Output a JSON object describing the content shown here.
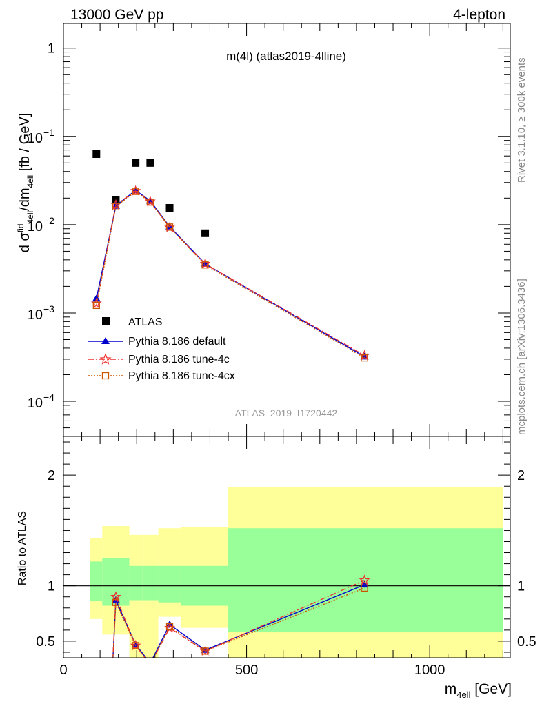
{
  "header": {
    "left_label": "13000 GeV pp",
    "right_label": "4-lepton"
  },
  "side_labels": {
    "rivet": "Rivet 3.1.10, ≥ 300k events",
    "mcplots": "mcplots.cern.ch [arXiv:1306.3436]"
  },
  "chart_data": [
    {
      "type": "scatter",
      "title": "m(4l) (atlas2019-4lline)",
      "analysis_id": "ATLAS_2019_I1720442",
      "ylabel_parts": {
        "a": "d σ",
        "b": "fid",
        "c": "4ell",
        "d": "/dm",
        "e": "4ell",
        "f": " [fb / GeV]"
      },
      "xlim": [
        0,
        1220
      ],
      "ylog": true,
      "ylim": [
        4e-05,
        1.9
      ],
      "yticks": [
        {
          "v": 1,
          "label": "1"
        },
        {
          "v": 0.1,
          "base": "10",
          "exp": "−1"
        },
        {
          "v": 0.01,
          "base": "10",
          "exp": "−2"
        },
        {
          "v": 0.001,
          "base": "10",
          "exp": "−3"
        },
        {
          "v": 0.0001,
          "base": "10",
          "exp": "−4"
        }
      ],
      "legend_position": "bottom-left",
      "series": [
        {
          "name": "ATLAS",
          "color": "#000000",
          "marker": "square",
          "points": [
            [
              90,
              0.063
            ],
            [
              143,
              0.019
            ],
            [
              197,
              0.05
            ],
            [
              237,
              0.05
            ],
            [
              290,
              0.0155
            ],
            [
              387,
              0.008
            ]
          ]
        },
        {
          "name": "Pythia 8.186 default",
          "color": "#0000cc",
          "marker": "triangle",
          "line": "solid",
          "points": [
            [
              90,
              0.00145
            ],
            [
              143,
              0.0163
            ],
            [
              197,
              0.0245
            ],
            [
              237,
              0.0186
            ],
            [
              290,
              0.0095
            ],
            [
              387,
              0.0036
            ],
            [
              822,
              0.00032
            ]
          ]
        },
        {
          "name": "Pythia 8.186 tune-4c",
          "color": "#ee3333",
          "marker": "star",
          "line": "dashdot",
          "points": [
            [
              90,
              0.00128
            ],
            [
              143,
              0.0168
            ],
            [
              197,
              0.0241
            ],
            [
              237,
              0.0183
            ],
            [
              290,
              0.0093
            ],
            [
              387,
              0.0036
            ],
            [
              822,
              0.00033
            ]
          ]
        },
        {
          "name": "Pythia 8.186 tune-4cx",
          "color": "#cc5500",
          "marker": "open-square",
          "line": "dotted",
          "points": [
            [
              90,
              0.00122
            ],
            [
              143,
              0.016
            ],
            [
              197,
              0.0238
            ],
            [
              237,
              0.018
            ],
            [
              290,
              0.0094
            ],
            [
              387,
              0.0035
            ],
            [
              822,
              0.00031
            ]
          ]
        }
      ]
    },
    {
      "type": "line",
      "ylabel": "Ratio to ATLAS",
      "xlabel_parts": {
        "a": "m",
        "b": "4ell",
        "c": " [GeV]"
      },
      "xlim": [
        0,
        1220
      ],
      "ylim": [
        0.35,
        2.35
      ],
      "xticks": [
        0,
        500,
        1000
      ],
      "yticks": [
        0.5,
        1,
        2
      ],
      "reference_line": 1,
      "bands": [
        {
          "x0": 72,
          "x1": 106,
          "inner": [
            0.86,
            1.22
          ],
          "outer": [
            0.7,
            1.43
          ]
        },
        {
          "x0": 106,
          "x1": 180,
          "inner": [
            0.82,
            1.25
          ],
          "outer": [
            0.56,
            1.54
          ]
        },
        {
          "x0": 180,
          "x1": 215,
          "inner": [
            0.87,
            1.18
          ],
          "outer": [
            0.0,
            1.46
          ]
        },
        {
          "x0": 215,
          "x1": 259,
          "inner": [
            0.87,
            1.18
          ],
          "outer": [
            0.0,
            1.46
          ]
        },
        {
          "x0": 259,
          "x1": 320,
          "inner": [
            0.85,
            1.18
          ],
          "outer": [
            0.72,
            1.52
          ]
        },
        {
          "x0": 320,
          "x1": 450,
          "inner": [
            0.82,
            1.18
          ],
          "outer": [
            0.62,
            1.53
          ]
        },
        {
          "x0": 450,
          "x1": 1200,
          "inner": [
            0.58,
            1.52
          ],
          "outer": [
            0.0,
            1.89
          ]
        }
      ],
      "series": [
        {
          "name": "Pythia 8.186 default",
          "color": "#0000cc",
          "marker": "triangle",
          "line": "solid",
          "points": [
            [
              130,
              0.0
            ],
            [
              143,
              0.87
            ],
            [
              197,
              0.47
            ],
            [
              237,
              0.3
            ],
            [
              290,
              0.65
            ],
            [
              387,
              0.42
            ],
            [
              822,
              1.01
            ]
          ]
        },
        {
          "name": "Pythia 8.186 tune-4c",
          "color": "#ee3333",
          "marker": "star",
          "line": "dashdot",
          "points": [
            [
              130,
              0.0
            ],
            [
              143,
              0.9
            ],
            [
              197,
              0.46
            ],
            [
              237,
              0.29
            ],
            [
              290,
              0.62
            ],
            [
              387,
              0.41
            ],
            [
              822,
              1.05
            ]
          ]
        },
        {
          "name": "Pythia 8.186 tune-4cx",
          "color": "#cc5500",
          "marker": "open-square",
          "line": "dotted",
          "points": [
            [
              130,
              0.0
            ],
            [
              143,
              0.85
            ],
            [
              197,
              0.46
            ],
            [
              237,
              0.29
            ],
            [
              290,
              0.63
            ],
            [
              387,
              0.41
            ],
            [
              822,
              0.98
            ]
          ]
        }
      ]
    }
  ]
}
